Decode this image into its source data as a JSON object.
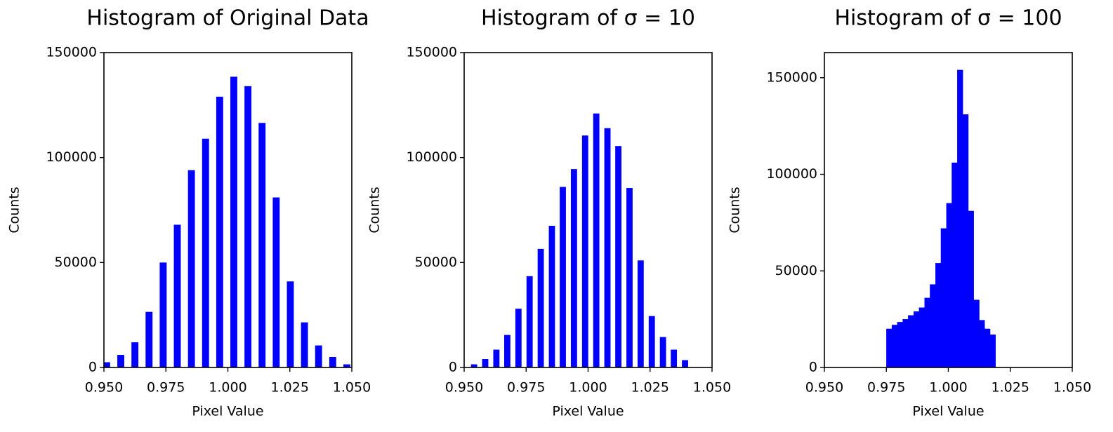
{
  "chart_data": [
    {
      "type": "bar",
      "title": "Histogram of Original Data",
      "xlabel": "Pixel Value",
      "ylabel": "Counts",
      "color": "#0000ff",
      "x": [
        0.9511,
        0.9568,
        0.9625,
        0.9682,
        0.9739,
        0.9796,
        0.9853,
        0.991,
        0.9967,
        1.0024,
        1.0081,
        1.0138,
        1.0195,
        1.0252,
        1.0309,
        1.0366,
        1.0423,
        1.048
      ],
      "values": [
        2500,
        6000,
        12000,
        26500,
        50000,
        68000,
        94000,
        109000,
        129000,
        138500,
        134000,
        116500,
        81000,
        41000,
        21500,
        10500,
        5000,
        1500
      ],
      "bar_width": 0.0028,
      "xlim": [
        0.95,
        1.05
      ],
      "xticks": [
        {
          "value": 0.95,
          "label": "0.950"
        },
        {
          "value": 0.975,
          "label": "0.975"
        },
        {
          "value": 1.0,
          "label": "1.000"
        },
        {
          "value": 1.025,
          "label": "1.025"
        },
        {
          "value": 1.05,
          "label": "1.050"
        }
      ],
      "ylim": [
        0,
        150000
      ],
      "yticks": [
        0,
        50000,
        100000,
        150000
      ]
    },
    {
      "type": "bar",
      "title": "Histogram of σ = 10",
      "xlabel": "Pixel Value",
      "ylabel": "Counts",
      "color": "#0000ff",
      "x": [
        0.954,
        0.9585,
        0.963,
        0.9674,
        0.9719,
        0.9764,
        0.9809,
        0.9854,
        0.9898,
        0.9943,
        0.9988,
        1.0033,
        1.0078,
        1.0122,
        1.0167,
        1.0212,
        1.0257,
        1.0302,
        1.0346,
        1.0391
      ],
      "values": [
        1500,
        4000,
        8500,
        15500,
        28000,
        43500,
        56500,
        67500,
        86000,
        94500,
        110500,
        121000,
        114000,
        105500,
        85500,
        51000,
        24500,
        14500,
        8500,
        3500
      ],
      "bar_width": 0.0025,
      "xlim": [
        0.95,
        1.05
      ],
      "xticks": [
        {
          "value": 0.95,
          "label": "0.950"
        },
        {
          "value": 0.975,
          "label": "0.975"
        },
        {
          "value": 1.0,
          "label": "1.000"
        },
        {
          "value": 1.025,
          "label": "1.025"
        },
        {
          "value": 1.05,
          "label": "1.050"
        }
      ],
      "ylim": [
        0,
        150000
      ],
      "yticks": [
        0,
        50000,
        100000,
        150000
      ]
    },
    {
      "type": "histogram",
      "title": "Histogram of σ = 100",
      "xlabel": "Pixel Value",
      "ylabel": "Counts",
      "color": "#0000ff",
      "bins": [
        0.975,
        0.9772,
        0.9794,
        0.9816,
        0.9838,
        0.986,
        0.9882,
        0.9904,
        0.9926,
        0.9948,
        0.997,
        0.9992,
        1.0014,
        1.0036,
        1.0058,
        1.008,
        1.0102,
        1.0124,
        1.0146,
        1.0168,
        1.019
      ],
      "values": [
        20000,
        22000,
        23500,
        25000,
        27000,
        29000,
        31000,
        36000,
        43000,
        54000,
        72000,
        85000,
        106000,
        154000,
        131000,
        81000,
        35000,
        24500,
        20000,
        17000
      ],
      "xlim": [
        0.95,
        1.05
      ],
      "xticks": [
        {
          "value": 0.95,
          "label": "0.950"
        },
        {
          "value": 0.975,
          "label": "0.975"
        },
        {
          "value": 1.0,
          "label": "1.000"
        },
        {
          "value": 1.025,
          "label": "1.025"
        },
        {
          "value": 1.05,
          "label": "1.050"
        }
      ],
      "ylim": [
        0,
        163000
      ],
      "yticks": [
        0,
        50000,
        100000,
        150000
      ]
    }
  ]
}
